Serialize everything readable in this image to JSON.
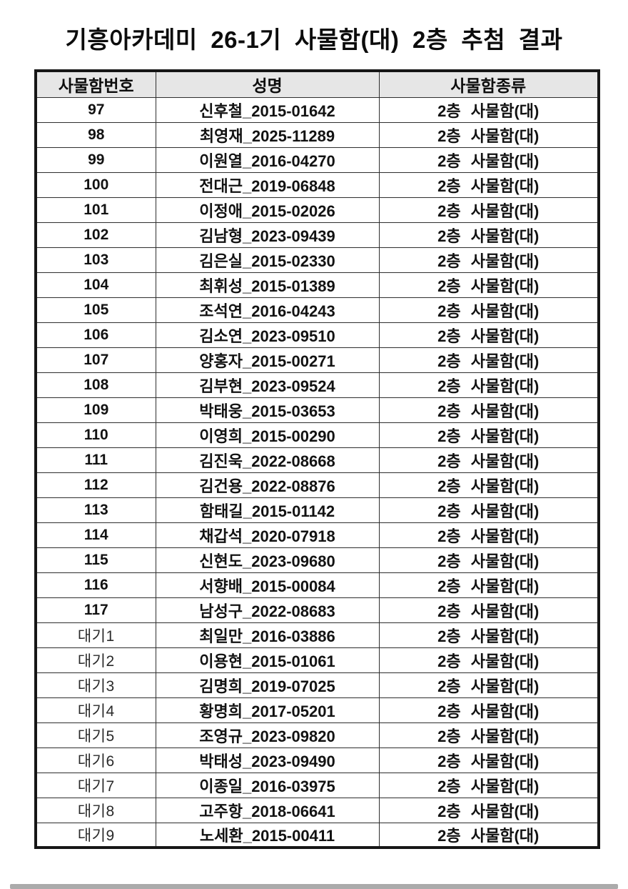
{
  "title": "기흥아카데미 26-1기 사물함(대) 2층 추첨 결과",
  "colors": {
    "header_fill": "#e6e6e6",
    "border": "#161616",
    "text": "#111111"
  },
  "table": {
    "headers": [
      "사물함번호",
      "성명",
      "사물함종류"
    ],
    "rows": [
      {
        "no": "97",
        "name": "신후철_2015-01642",
        "type": "2층 사물함(대)"
      },
      {
        "no": "98",
        "name": "최영재_2025-11289",
        "type": "2층 사물함(대)"
      },
      {
        "no": "99",
        "name": "이원열_2016-04270",
        "type": "2층 사물함(대)"
      },
      {
        "no": "100",
        "name": "전대근_2019-06848",
        "type": "2층 사물함(대)"
      },
      {
        "no": "101",
        "name": "이정애_2015-02026",
        "type": "2층 사물함(대)"
      },
      {
        "no": "102",
        "name": "김남형_2023-09439",
        "type": "2층 사물함(대)"
      },
      {
        "no": "103",
        "name": "김은실_2015-02330",
        "type": "2층 사물함(대)"
      },
      {
        "no": "104",
        "name": "최휘성_2015-01389",
        "type": "2층 사물함(대)"
      },
      {
        "no": "105",
        "name": "조석연_2016-04243",
        "type": "2층 사물함(대)"
      },
      {
        "no": "106",
        "name": "김소연_2023-09510",
        "type": "2층 사물함(대)"
      },
      {
        "no": "107",
        "name": "양홍자_2015-00271",
        "type": "2층 사물함(대)"
      },
      {
        "no": "108",
        "name": "김부현_2023-09524",
        "type": "2층 사물함(대)"
      },
      {
        "no": "109",
        "name": "박태웅_2015-03653",
        "type": "2층 사물함(대)"
      },
      {
        "no": "110",
        "name": "이영희_2015-00290",
        "type": "2층 사물함(대)"
      },
      {
        "no": "111",
        "name": "김진욱_2022-08668",
        "type": "2층 사물함(대)"
      },
      {
        "no": "112",
        "name": "김건용_2022-08876",
        "type": "2층 사물함(대)"
      },
      {
        "no": "113",
        "name": "함태길_2015-01142",
        "type": "2층 사물함(대)"
      },
      {
        "no": "114",
        "name": "채갑석_2020-07918",
        "type": "2층 사물함(대)"
      },
      {
        "no": "115",
        "name": "신현도_2023-09680",
        "type": "2층 사물함(대)"
      },
      {
        "no": "116",
        "name": "서향배_2015-00084",
        "type": "2층 사물함(대)"
      },
      {
        "no": "117",
        "name": "남성구_2022-08683",
        "type": "2층 사물함(대)"
      },
      {
        "no": "대기1",
        "name": "최일만_2016-03886",
        "type": "2층 사물함(대)"
      },
      {
        "no": "대기2",
        "name": "이용현_2015-01061",
        "type": "2층 사물함(대)"
      },
      {
        "no": "대기3",
        "name": "김명희_2019-07025",
        "type": "2층 사물함(대)"
      },
      {
        "no": "대기4",
        "name": "황명희_2017-05201",
        "type": "2층 사물함(대)"
      },
      {
        "no": "대기5",
        "name": "조영규_2023-09820",
        "type": "2층 사물함(대)"
      },
      {
        "no": "대기6",
        "name": "박태성_2023-09490",
        "type": "2층 사물함(대)"
      },
      {
        "no": "대기7",
        "name": "이종일_2016-03975",
        "type": "2층 사물함(대)"
      },
      {
        "no": "대기8",
        "name": "고주항_2018-06641",
        "type": "2층 사물함(대)"
      },
      {
        "no": "대기9",
        "name": "노세환_2015-00411",
        "type": "2층 사물함(대)"
      }
    ]
  }
}
